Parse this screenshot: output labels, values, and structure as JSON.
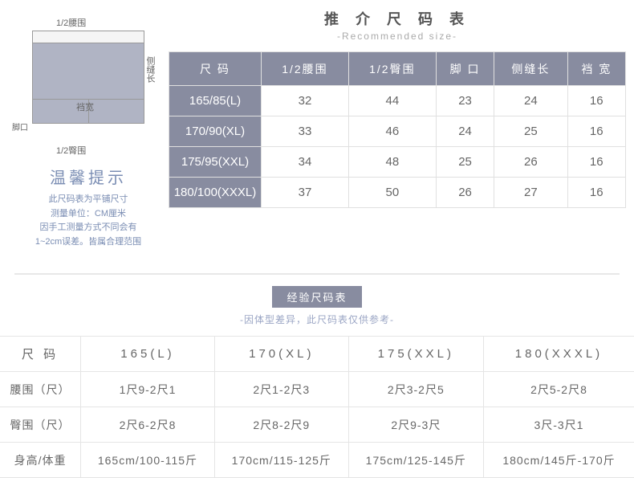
{
  "diagram": {
    "label_waist": "1/2腰围",
    "label_side": "侧缝长",
    "label_crotch": "裆宽",
    "label_leg": "脚口",
    "label_hip": "1/2臀围"
  },
  "tips": {
    "title": "温馨提示",
    "line1": "此尺码表为平铺尺寸",
    "line2": "测量单位：CM厘米",
    "line3": "因手工测量方式不同会有",
    "line4": "1~2cm误差。皆属合理范围"
  },
  "section1": {
    "title": "推 介 尺 码 表",
    "subtitle": "-Recommended size-",
    "headers": [
      "尺   码",
      "1/2腰围",
      "1/2臀围",
      "脚 口",
      "侧缝长",
      "裆 宽"
    ],
    "rows": [
      [
        "165/85(L)",
        "32",
        "44",
        "23",
        "24",
        "16"
      ],
      [
        "170/90(XL)",
        "33",
        "46",
        "24",
        "25",
        "16"
      ],
      [
        "175/95(XXL)",
        "34",
        "48",
        "25",
        "26",
        "16"
      ],
      [
        "180/100(XXXL)",
        "37",
        "50",
        "26",
        "27",
        "16"
      ]
    ]
  },
  "section2": {
    "badge": "经验尺码表",
    "subtitle": "-因体型差异，此尺码表仅供参考-",
    "headers": [
      "尺 码",
      "165(L)",
      "170(XL)",
      "175(XXL)",
      "180(XXXL)"
    ],
    "rows": [
      [
        "腰围（尺）",
        "1尺9-2尺1",
        "2尺1-2尺3",
        "2尺3-2尺5",
        "2尺5-2尺8"
      ],
      [
        "臀围（尺）",
        "2尺6-2尺8",
        "2尺8-2尺9",
        "2尺9-3尺",
        "3尺-3尺1"
      ],
      [
        "身高/体重",
        "165cm/100-115斤",
        "170cm/115-125斤",
        "175cm/125-145斤",
        "180cm/145斤-170斤"
      ]
    ]
  },
  "colors": {
    "header_bg": "#888ca0",
    "header_text": "#ffffff",
    "border": "#e0e0e0",
    "tips_color": "#7a8db3",
    "text": "#666666"
  }
}
